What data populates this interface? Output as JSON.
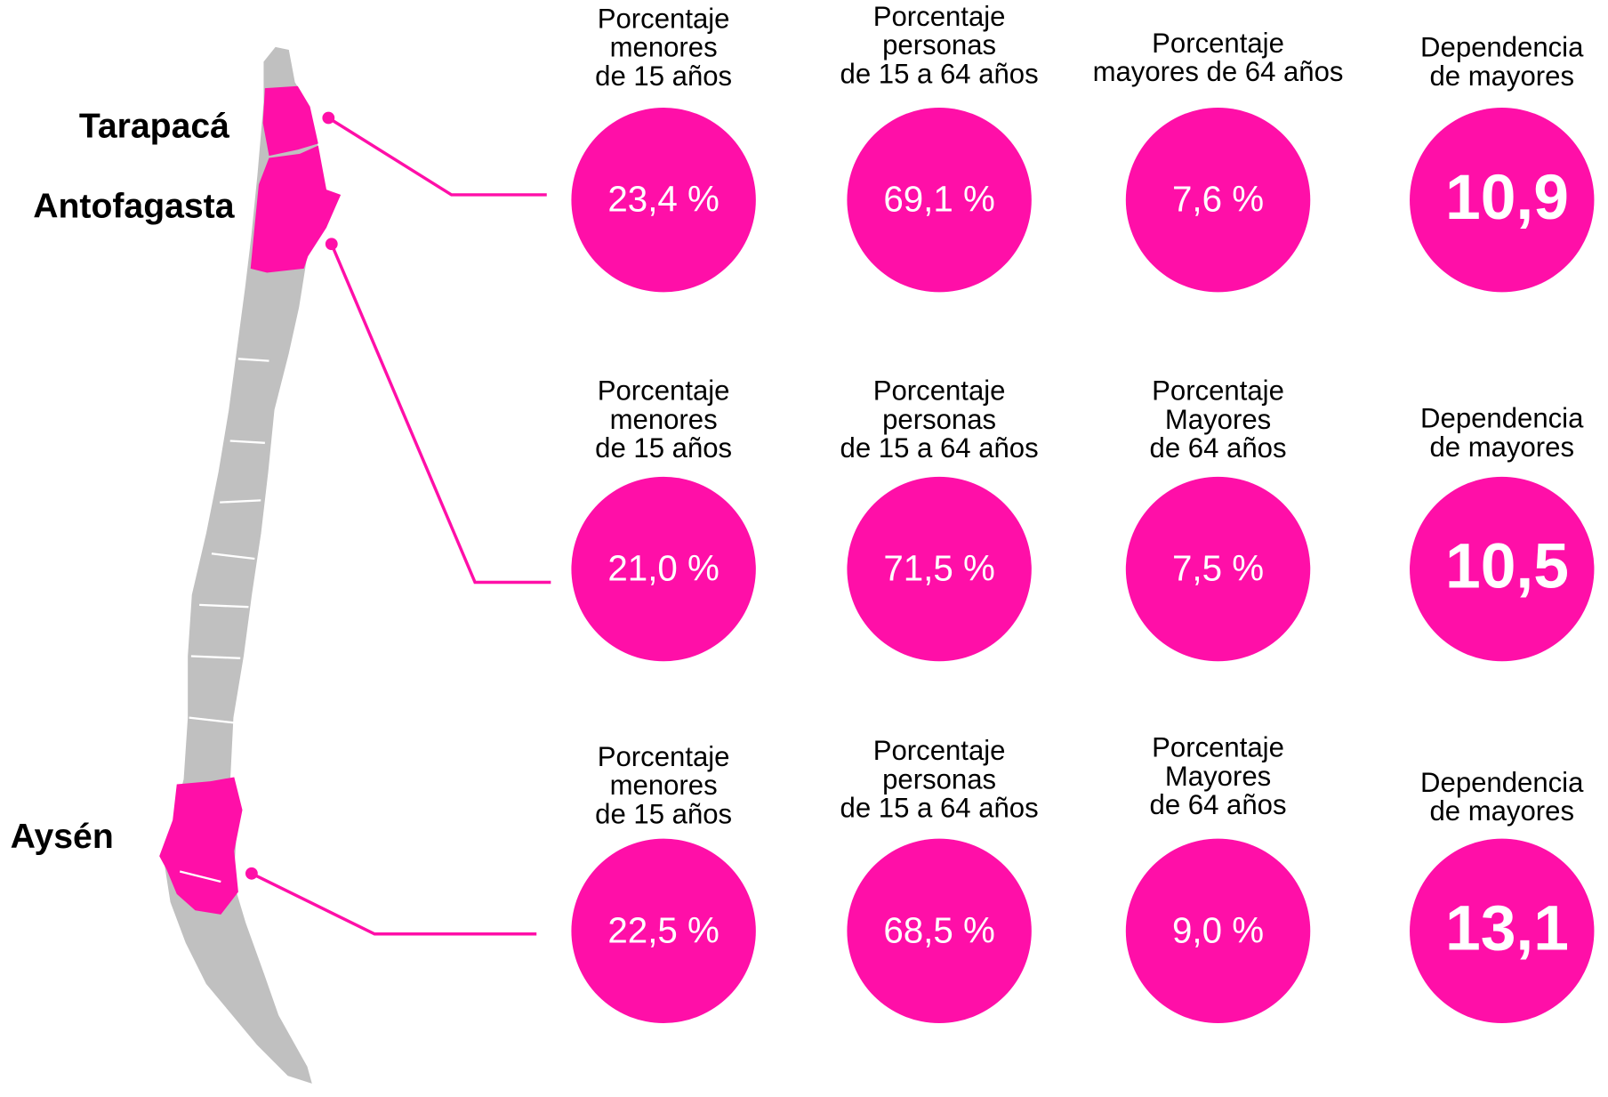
{
  "regions": [
    "Tarapacá",
    "Antofagasta",
    "Aysén"
  ],
  "rows": [
    {
      "cells": [
        {
          "header": [
            "Porcentaje",
            "menores",
            "de 15 años"
          ],
          "value": "23,4 %"
        },
        {
          "header": [
            "Porcentaje",
            "personas",
            "de 15 a 64 años"
          ],
          "value": "69,1 %"
        },
        {
          "header": [
            "Porcentaje",
            "mayores de 64 años"
          ],
          "value": "7,6 %"
        },
        {
          "header": [
            "Dependencia",
            "de mayores"
          ],
          "value": "10,9"
        }
      ]
    },
    {
      "cells": [
        {
          "header": [
            "Porcentaje",
            "menores",
            "de 15 años"
          ],
          "value": "21,0 %"
        },
        {
          "header": [
            "Porcentaje",
            "personas",
            "de 15 a 64 años"
          ],
          "value": "71,5 %"
        },
        {
          "header": [
            "Porcentaje",
            "Mayores",
            "de 64 años"
          ],
          "value": "7,5 %"
        },
        {
          "header": [
            "Dependencia",
            "de mayores"
          ],
          "value": "10,5"
        }
      ]
    },
    {
      "cells": [
        {
          "header": [
            "Porcentaje",
            "menores",
            "de 15 años"
          ],
          "value": "22,5 %"
        },
        {
          "header": [
            "Porcentaje",
            "personas",
            "de 15 a 64 años"
          ],
          "value": "68,5 %"
        },
        {
          "header": [
            "Porcentaje",
            "Mayores",
            "de 64 años"
          ],
          "value": "9,0 %"
        },
        {
          "header": [
            "Dependencia",
            "de mayores"
          ],
          "value": "13,1"
        }
      ]
    }
  ]
}
